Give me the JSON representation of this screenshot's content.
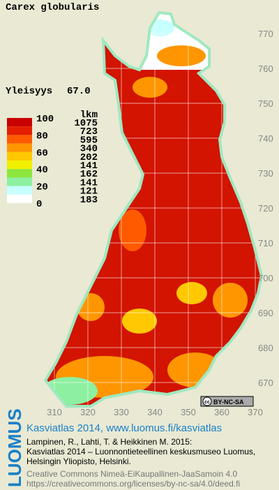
{
  "title": "Carex globularis",
  "frequency": {
    "label": "Yleisyys",
    "value": "67.0"
  },
  "legend": {
    "scale_labels": [
      "100",
      "80",
      "60",
      "40",
      "20",
      "0"
    ],
    "count_header": "lkm",
    "counts": [
      "1075",
      "723",
      "595",
      "340",
      "202",
      "141",
      "162",
      "141",
      "121",
      "183"
    ],
    "colors": [
      "#c80000",
      "#e41e00",
      "#ff5a00",
      "#ff9600",
      "#ffc800",
      "#f0f000",
      "#8ce63c",
      "#8cf0a0",
      "#c8ffff",
      "#ffffff"
    ]
  },
  "grid": {
    "x_labels": [
      310,
      320,
      330,
      340,
      350,
      360,
      370
    ],
    "y_labels": [
      770,
      760,
      750,
      740,
      730,
      720,
      710,
      700,
      690,
      680,
      670
    ]
  },
  "badge": {
    "icon": "cc",
    "text": "BY-NC-SA"
  },
  "footer": {
    "logo": "LUOMUS",
    "heading": "Kasviatlas 2014, www.luomus.fi/kasviatlas",
    "citation": [
      "Lampinen, R., Lahti, T. & Heikkinen M. 2015:",
      "Kasviatlas 2014 – Luonnontieteellinen keskusmuseo Luomus,",
      "Helsingin Yliopisto, Helsinki."
    ],
    "license": [
      "Creative Commons Nimeä-EiKaupallinen-JaaSamoin 4.0",
      "https://creativecommons.org/licenses/by-nc-sa/4.0/deed.fi"
    ]
  }
}
